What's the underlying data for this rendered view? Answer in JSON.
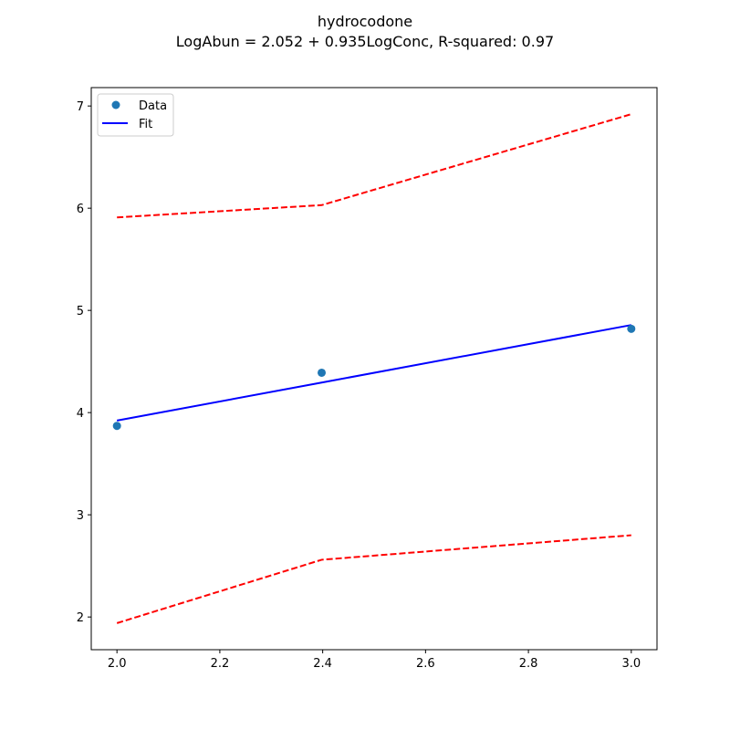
{
  "chart_data": {
    "type": "scatter",
    "title": "hydrocodone",
    "subtitle": "LogAbun = 2.052 + 0.935LogConc, R-squared: 0.97",
    "xlabel": "",
    "ylabel": "",
    "xlim": [
      1.95,
      3.05
    ],
    "ylim": [
      1.68,
      7.18
    ],
    "xticks": [
      2.0,
      2.2,
      2.4,
      2.6,
      2.8,
      3.0
    ],
    "xtick_labels": [
      "2.0",
      "2.2",
      "2.4",
      "2.6",
      "2.8",
      "3.0"
    ],
    "yticks": [
      2,
      3,
      4,
      5,
      6,
      7
    ],
    "ytick_labels": [
      "2",
      "3",
      "4",
      "5",
      "6",
      "7"
    ],
    "grid": false,
    "legend_position": "top-left",
    "series": [
      {
        "name": "Data",
        "kind": "points",
        "color": "#1f77b4",
        "x": [
          2.0,
          2.398,
          3.0
        ],
        "y": [
          3.87,
          4.39,
          4.82
        ]
      },
      {
        "name": "Fit",
        "kind": "line",
        "color": "#0000ff",
        "x": [
          2.0,
          2.398,
          3.0
        ],
        "y": [
          3.922,
          4.294,
          4.857
        ]
      },
      {
        "kind": "dashed",
        "color": "#ff0000",
        "x": [
          2.0,
          2.398,
          3.0
        ],
        "y": [
          5.91,
          6.03,
          6.92
        ]
      },
      {
        "kind": "dashed",
        "color": "#ff0000",
        "x": [
          2.0,
          2.398,
          3.0
        ],
        "y": [
          1.94,
          2.56,
          2.8
        ]
      }
    ]
  }
}
